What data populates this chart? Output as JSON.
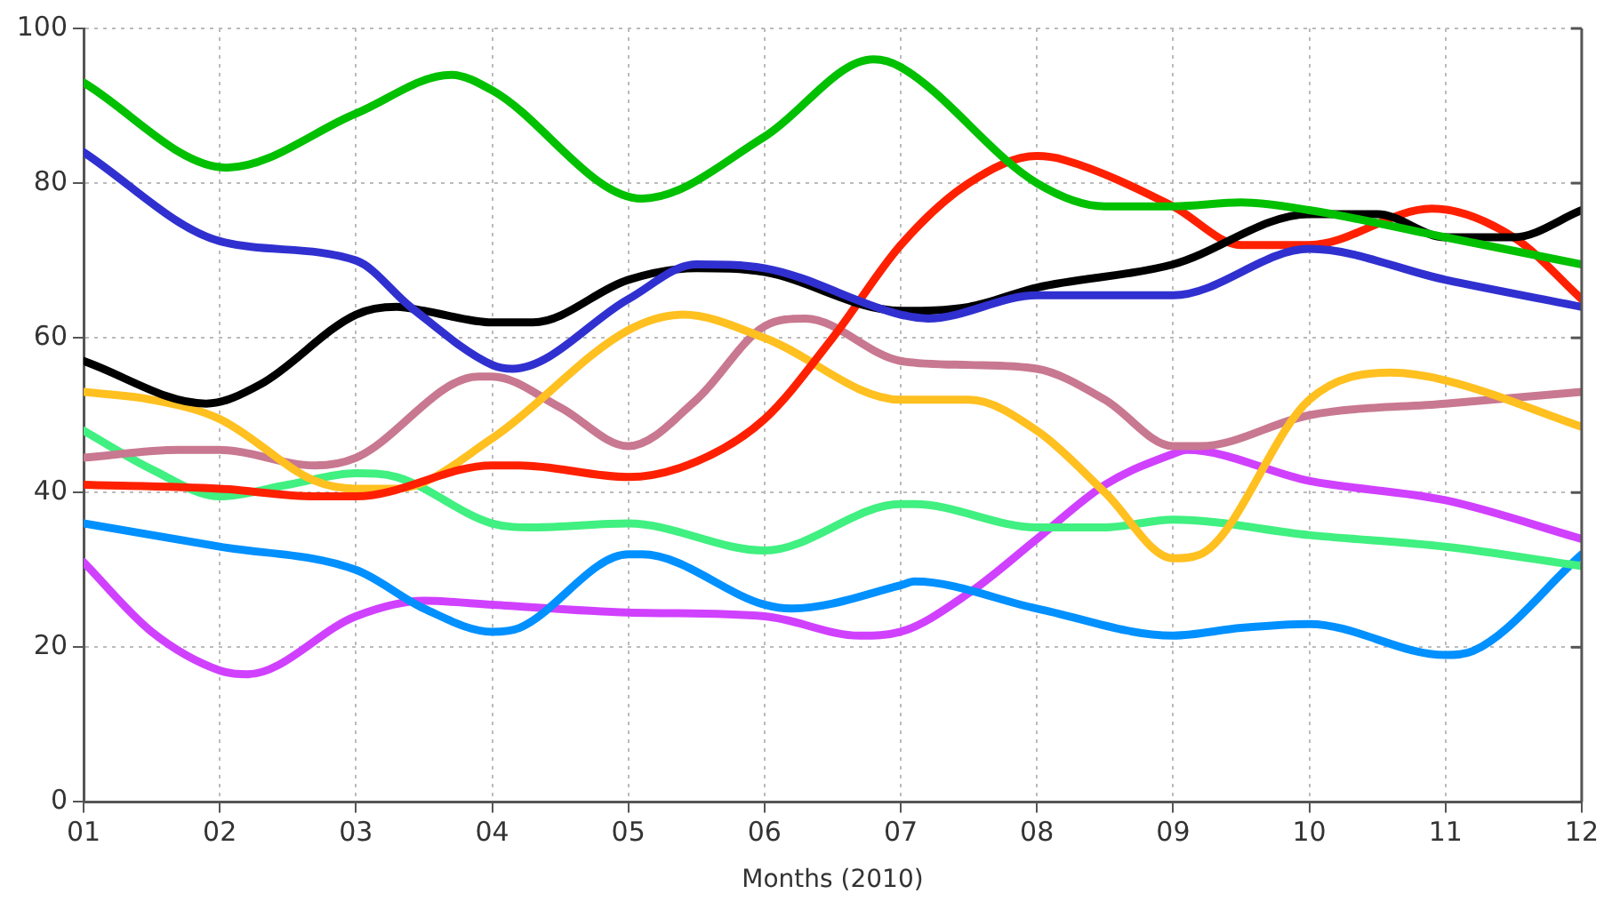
{
  "chart_data": {
    "type": "line",
    "xlabel": "Months (2010)",
    "xlim": [
      1,
      12
    ],
    "ylim": [
      0,
      100
    ],
    "xticks": [
      {
        "value": 1,
        "label": "01"
      },
      {
        "value": 2,
        "label": "02"
      },
      {
        "value": 3,
        "label": "03"
      },
      {
        "value": 4,
        "label": "04"
      },
      {
        "value": 5,
        "label": "05"
      },
      {
        "value": 6,
        "label": "06"
      },
      {
        "value": 7,
        "label": "07"
      },
      {
        "value": 8,
        "label": "08"
      },
      {
        "value": 9,
        "label": "09"
      },
      {
        "value": 10,
        "label": "10"
      },
      {
        "value": 11,
        "label": "11"
      },
      {
        "value": 12,
        "label": "12"
      }
    ],
    "yticks": [
      0,
      20,
      40,
      60,
      80,
      100
    ],
    "grid": true,
    "legend": false,
    "marker": "none",
    "line_style": "solid",
    "series": [
      {
        "color": "#00c000",
        "x": [
          1,
          2.05,
          3,
          3.7,
          4,
          5.1,
          6,
          6.8,
          7,
          8,
          8.5,
          9,
          9.5,
          10,
          11,
          12
        ],
        "values": [
          93,
          82,
          89,
          94,
          92,
          78,
          86,
          96,
          95,
          80,
          77,
          77,
          77.5,
          76.5,
          73,
          69.5
        ]
      },
      {
        "color": "#3030d0",
        "x": [
          1,
          2,
          3,
          3.4,
          4,
          4.15,
          5,
          5.5,
          6,
          7,
          7.2,
          8,
          9,
          10,
          11,
          12
        ],
        "values": [
          84,
          72.5,
          70,
          64,
          56.5,
          56,
          65,
          69.5,
          69,
          63,
          62.5,
          65.5,
          65.5,
          71.5,
          67.5,
          64
        ]
      },
      {
        "color": "#000000",
        "x": [
          1,
          1.9,
          2.3,
          3,
          3.3,
          3.5,
          4,
          4.3,
          5,
          5.5,
          6,
          7,
          7.5,
          8,
          9,
          10,
          10.5,
          11,
          11.5,
          12
        ],
        "values": [
          57,
          51.5,
          54,
          63,
          64,
          63.5,
          62,
          62,
          67.5,
          69,
          68.5,
          63.5,
          64,
          66.5,
          69.5,
          76,
          76,
          73,
          73,
          76.5
        ]
      },
      {
        "color": "#ff2000",
        "x": [
          1,
          2,
          2.7,
          3,
          4,
          4.2,
          5,
          5.5,
          6,
          6.5,
          7,
          7.5,
          8,
          8.2,
          9,
          9.5,
          10,
          10.9,
          11.5,
          12
        ],
        "values": [
          41,
          40.5,
          39.5,
          39.5,
          43.5,
          43.5,
          42,
          44,
          49.5,
          60,
          72,
          80,
          83.5,
          83,
          77,
          72,
          72,
          76.7,
          73,
          65
        ]
      },
      {
        "color": "#ffc020",
        "x": [
          1,
          1.5,
          2,
          2.7,
          3,
          3.3,
          4,
          5,
          5.4,
          6,
          7,
          7.5,
          8,
          8.5,
          9,
          9.2,
          10,
          10.6,
          11,
          12
        ],
        "values": [
          53,
          52,
          49.5,
          41.5,
          40.5,
          40.5,
          47,
          61,
          63,
          60,
          52,
          52,
          48,
          40,
          31.5,
          32,
          52,
          55.5,
          54.5,
          48.5
        ]
      },
      {
        "color": "#c87890",
        "x": [
          1,
          1.7,
          2,
          2.7,
          3,
          3.9,
          4,
          4.5,
          5,
          5.5,
          6,
          6.3,
          7,
          7.5,
          8,
          8.5,
          9,
          9.2,
          10,
          11,
          12
        ],
        "values": [
          44.5,
          45.5,
          45.5,
          43.5,
          44.5,
          55,
          55,
          51,
          46,
          52,
          61.5,
          62.5,
          57,
          56.5,
          56,
          52,
          46,
          46,
          50,
          51.5,
          53
        ]
      },
      {
        "color": "#40f080",
        "x": [
          1,
          1.5,
          2,
          2.5,
          3,
          3.3,
          4,
          4.3,
          5,
          6,
          7,
          7.1,
          8,
          8.5,
          9,
          10,
          11,
          12
        ],
        "values": [
          48,
          43,
          39.5,
          41,
          42.5,
          42,
          36,
          35.5,
          36,
          32.5,
          38.5,
          38.5,
          35.5,
          35.5,
          36.5,
          34.5,
          33,
          30.5
        ]
      },
      {
        "color": "#0090ff",
        "x": [
          1,
          2,
          3,
          3.5,
          4,
          4.2,
          5,
          5.1,
          6,
          6.2,
          7,
          7.1,
          8,
          9,
          9.5,
          10,
          11,
          11.2,
          12
        ],
        "values": [
          36,
          33,
          30,
          25,
          22,
          22.5,
          32,
          32,
          25.5,
          25,
          28,
          28.5,
          25,
          21.5,
          22.5,
          23,
          19,
          19.5,
          32
        ]
      },
      {
        "color": "#d040ff",
        "x": [
          1,
          1.5,
          2,
          2.2,
          3,
          3.5,
          4,
          5,
          6,
          6.7,
          7,
          7.5,
          8,
          8.5,
          9,
          9.1,
          10,
          11,
          12
        ],
        "values": [
          31,
          22,
          17,
          16.5,
          24,
          26,
          25.5,
          24.5,
          24,
          21.5,
          22,
          27,
          34,
          41,
          45,
          45.5,
          41.5,
          39,
          34
        ]
      }
    ]
  }
}
